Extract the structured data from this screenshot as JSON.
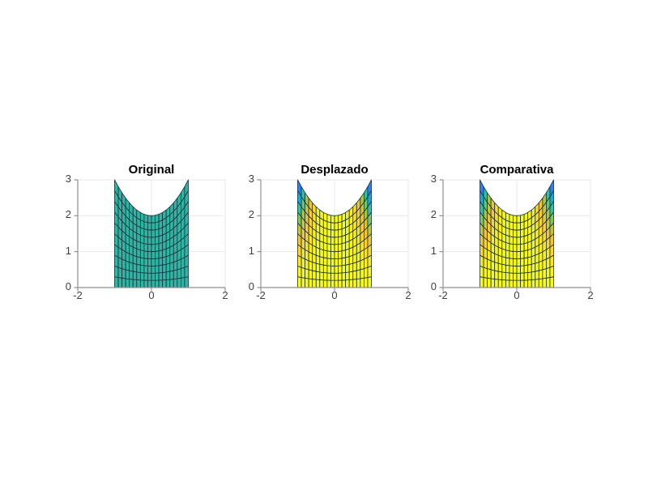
{
  "figure": {
    "background": "#ffffff",
    "subplots": [
      {
        "id": "original",
        "title": "Original",
        "color_mode": "uniform",
        "uniform_fill": "#30b5a5"
      },
      {
        "id": "desplazado",
        "title": "Desplazado",
        "color_mode": "gradient"
      },
      {
        "id": "comparativa",
        "title": "Comparativa",
        "color_mode": "gradient"
      }
    ]
  },
  "axes": {
    "x_range": [
      -2,
      2
    ],
    "y_range": [
      0,
      3
    ],
    "x_ticks": [
      -2,
      0,
      2
    ],
    "x_tick_labels": [
      "-2",
      "0",
      "2"
    ],
    "y_ticks": [
      0,
      1,
      2,
      3
    ],
    "y_tick_labels": [
      "0",
      "1",
      "2",
      "3"
    ],
    "grid": true,
    "colors": {
      "spine": "#8f8f8f",
      "tick": "#8f8f8f",
      "grid": "#e9e9e9",
      "tick_label": "#3f3f3f",
      "title": "#000000",
      "mesh_edge": "#16313a",
      "uniform_teal": "#30b5a5"
    }
  },
  "chart_data": {
    "type": "heatmap",
    "subtype": "curved-surface-mesh-top-view",
    "titles": [
      "Original",
      "Desplazado",
      "Comparativa"
    ],
    "xlim": [
      -2,
      2
    ],
    "ylim": [
      0,
      3
    ],
    "x_tick_values": [
      -2,
      0,
      2
    ],
    "y_tick_values": [
      0,
      1,
      2,
      3
    ],
    "grid": "on",
    "mesh": {
      "u_range": [
        -1,
        1
      ],
      "columns": 20,
      "v_range": [
        0,
        2
      ],
      "rows": 10,
      "x_formula": "x = u",
      "y_formula": "y = v*(2 + u^2)/2",
      "top_boundary": "y = 2 + x^2  (peaks at y=3 at x=-1 and x=1)",
      "bottom_boundary": "y = 0 (flat, from x=-1 to x=1)",
      "color_value_formula": "t = 1 - ((u^2 * v)/2)^2   (t=1 bright yellow at center/bottom, t=0 blue at top corners)",
      "colormap_name": "parula",
      "colormap_stops": [
        "#3d26a8",
        "#4852f4",
        "#2d87f7",
        "#11b1d6",
        "#37c897",
        "#abc739",
        "#fec338",
        "#f9fb14"
      ]
    }
  }
}
